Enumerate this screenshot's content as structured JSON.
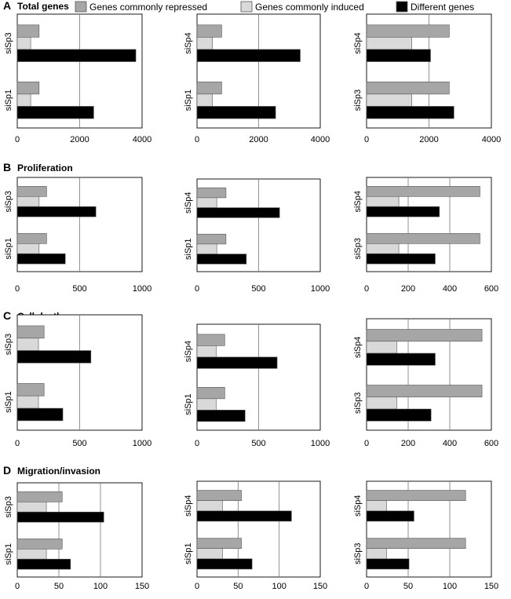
{
  "legend": [
    {
      "label": "Genes commonly repressed",
      "color": "#a6a6a6"
    },
    {
      "label": "Genes commonly induced",
      "color": "#d9d9d9"
    },
    {
      "label": "Different genes",
      "color": "#000000"
    }
  ],
  "series_colors": [
    "#a6a6a6",
    "#d9d9d9",
    "#000000"
  ],
  "chart_data": [
    {
      "type": "bar",
      "panel_label": "A",
      "title": "Total genes",
      "row": 0,
      "col": 0,
      "orientation": "horizontal",
      "categories": [
        "siSp3",
        "siSp1"
      ],
      "xlim": [
        0,
        4000
      ],
      "xticks": [
        0,
        2000,
        4000
      ],
      "series": [
        {
          "name": "Genes commonly repressed",
          "values": [
            700,
            700
          ]
        },
        {
          "name": "Genes commonly induced",
          "values": [
            430,
            430
          ]
        },
        {
          "name": "Different genes",
          "values": [
            3800,
            2450
          ]
        }
      ]
    },
    {
      "type": "bar",
      "panel_label": "",
      "title": "",
      "row": 0,
      "col": 1,
      "orientation": "horizontal",
      "categories": [
        "siSp4",
        "siSp1"
      ],
      "xlim": [
        0,
        4000
      ],
      "xticks": [
        0,
        2000,
        4000
      ],
      "series": [
        {
          "name": "Genes commonly repressed",
          "values": [
            800,
            800
          ]
        },
        {
          "name": "Genes commonly induced",
          "values": [
            500,
            500
          ]
        },
        {
          "name": "Different genes",
          "values": [
            3350,
            2550
          ]
        }
      ]
    },
    {
      "type": "bar",
      "panel_label": "",
      "title": "",
      "row": 0,
      "col": 2,
      "orientation": "horizontal",
      "categories": [
        "siSp4",
        "siSp3"
      ],
      "xlim": [
        0,
        4000
      ],
      "xticks": [
        0,
        2000,
        4000
      ],
      "series": [
        {
          "name": "Genes commonly repressed",
          "values": [
            2650,
            2650
          ]
        },
        {
          "name": "Genes commonly induced",
          "values": [
            1450,
            1450
          ]
        },
        {
          "name": "Different genes",
          "values": [
            2050,
            2800
          ]
        }
      ]
    },
    {
      "type": "bar",
      "panel_label": "B",
      "title": "Proliferation",
      "row": 1,
      "col": 0,
      "orientation": "horizontal",
      "categories": [
        "siSp3",
        "siSp1"
      ],
      "xlim": [
        0,
        1000
      ],
      "xticks": [
        0,
        500,
        1000
      ],
      "series": [
        {
          "name": "Genes commonly repressed",
          "values": [
            235,
            235
          ]
        },
        {
          "name": "Genes commonly induced",
          "values": [
            175,
            175
          ]
        },
        {
          "name": "Different genes",
          "values": [
            630,
            385
          ]
        }
      ]
    },
    {
      "type": "bar",
      "panel_label": "",
      "title": "",
      "row": 1,
      "col": 1,
      "orientation": "horizontal",
      "categories": [
        "siSp4",
        "siSp1"
      ],
      "xlim": [
        0,
        1000
      ],
      "xticks": [
        0,
        500,
        1000
      ],
      "series": [
        {
          "name": "Genes commonly repressed",
          "values": [
            235,
            235
          ]
        },
        {
          "name": "Genes commonly induced",
          "values": [
            160,
            160
          ]
        },
        {
          "name": "Different genes",
          "values": [
            670,
            400
          ]
        }
      ]
    },
    {
      "type": "bar",
      "panel_label": "",
      "title": "",
      "row": 1,
      "col": 2,
      "orientation": "horizontal",
      "categories": [
        "siSp4",
        "siSp3"
      ],
      "xlim": [
        0,
        600
      ],
      "xticks": [
        0,
        200,
        400,
        600
      ],
      "series": [
        {
          "name": "Genes commonly repressed",
          "values": [
            545,
            545
          ]
        },
        {
          "name": "Genes commonly induced",
          "values": [
            155,
            155
          ]
        },
        {
          "name": "Different genes",
          "values": [
            350,
            330
          ]
        }
      ]
    },
    {
      "type": "bar",
      "panel_label": "C",
      "title": "Cell death",
      "row": 2,
      "col": 0,
      "orientation": "horizontal",
      "categories": [
        "siSp3",
        "siSp1"
      ],
      "xlim": [
        0,
        1000
      ],
      "xticks": [
        0,
        500,
        1000
      ],
      "series": [
        {
          "name": "Genes commonly repressed",
          "values": [
            215,
            215
          ]
        },
        {
          "name": "Genes commonly induced",
          "values": [
            170,
            170
          ]
        },
        {
          "name": "Different genes",
          "values": [
            590,
            365
          ]
        }
      ]
    },
    {
      "type": "bar",
      "panel_label": "",
      "title": "",
      "row": 2,
      "col": 1,
      "orientation": "horizontal",
      "categories": [
        "siSp4",
        "siSp1"
      ],
      "xlim": [
        0,
        1000
      ],
      "xticks": [
        0,
        500,
        1000
      ],
      "series": [
        {
          "name": "Genes commonly repressed",
          "values": [
            225,
            225
          ]
        },
        {
          "name": "Genes commonly induced",
          "values": [
            155,
            155
          ]
        },
        {
          "name": "Different genes",
          "values": [
            650,
            390
          ]
        }
      ]
    },
    {
      "type": "bar",
      "panel_label": "",
      "title": "",
      "row": 2,
      "col": 2,
      "orientation": "horizontal",
      "categories": [
        "siSp4",
        "siSp3"
      ],
      "xlim": [
        0,
        600
      ],
      "xticks": [
        0,
        200,
        400,
        600
      ],
      "series": [
        {
          "name": "Genes commonly repressed",
          "values": [
            555,
            555
          ]
        },
        {
          "name": "Genes commonly induced",
          "values": [
            145,
            145
          ]
        },
        {
          "name": "Different genes",
          "values": [
            330,
            310
          ]
        }
      ]
    },
    {
      "type": "bar",
      "panel_label": "D",
      "title": "Migration/invasion",
      "row": 3,
      "col": 0,
      "orientation": "horizontal",
      "categories": [
        "siSp3",
        "siSp1"
      ],
      "xlim": [
        0,
        150
      ],
      "xticks": [
        0,
        50,
        100,
        150
      ],
      "series": [
        {
          "name": "Genes commonly repressed",
          "values": [
            54,
            54
          ]
        },
        {
          "name": "Genes commonly induced",
          "values": [
            35,
            35
          ]
        },
        {
          "name": "Different genes",
          "values": [
            104,
            64
          ]
        }
      ]
    },
    {
      "type": "bar",
      "panel_label": "",
      "title": "",
      "row": 3,
      "col": 1,
      "orientation": "horizontal",
      "categories": [
        "siSp4",
        "siSp1"
      ],
      "xlim": [
        0,
        150
      ],
      "xticks": [
        0,
        50,
        100,
        150
      ],
      "series": [
        {
          "name": "Genes commonly repressed",
          "values": [
            54,
            54
          ]
        },
        {
          "name": "Genes commonly induced",
          "values": [
            31,
            31
          ]
        },
        {
          "name": "Different genes",
          "values": [
            115,
            67
          ]
        }
      ]
    },
    {
      "type": "bar",
      "panel_label": "",
      "title": "",
      "row": 3,
      "col": 2,
      "orientation": "horizontal",
      "categories": [
        "siSp4",
        "siSp3"
      ],
      "xlim": [
        0,
        150
      ],
      "xticks": [
        0,
        50,
        100,
        150
      ],
      "series": [
        {
          "name": "Genes commonly repressed",
          "values": [
            119,
            119
          ]
        },
        {
          "name": "Genes commonly induced",
          "values": [
            24,
            24
          ]
        },
        {
          "name": "Different genes",
          "values": [
            57,
            51
          ]
        }
      ]
    }
  ]
}
